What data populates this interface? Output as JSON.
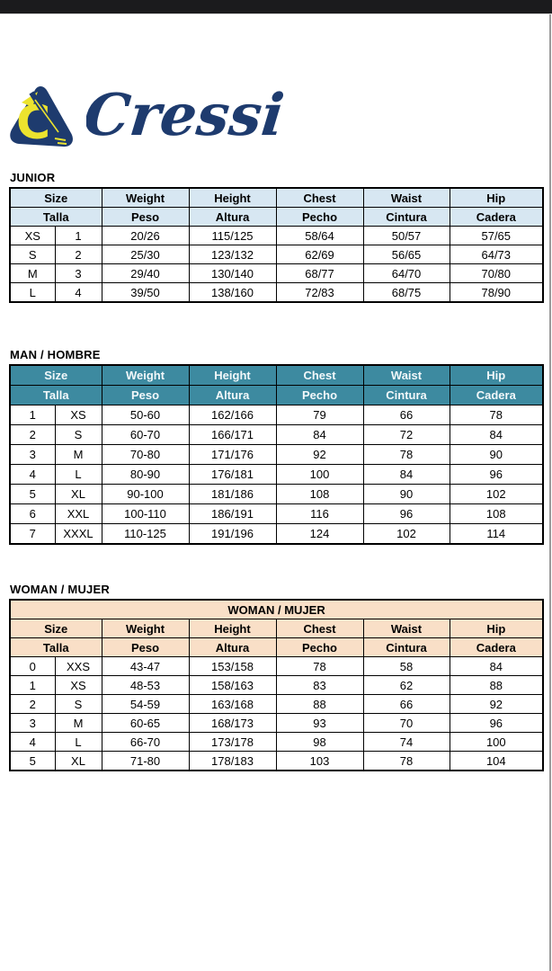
{
  "logo": {
    "brand": "Cressi",
    "navy": "#1e3b6e",
    "yellow": "#ece32e"
  },
  "colors": {
    "top_bar": "#1b1b1d",
    "table_border": "#000000",
    "junior_header_bg": "#d7e7f2",
    "junior_header_text": "#000000",
    "man_header_bg": "#3d8aa0",
    "man_header_text": "#f2f8fa",
    "woman_header_bg": "#f9dfc7",
    "woman_header_text": "#000000"
  },
  "tables": [
    {
      "id": "junior",
      "section_label": "JUNIOR",
      "theme": {
        "header_bg": "#d7e7f2",
        "header_text": "#000000"
      },
      "span_header": null,
      "headers_en": [
        "Size",
        "Weight",
        "Height",
        "Chest",
        "Waist",
        "Hip"
      ],
      "headers_es": [
        "Talla",
        "Peso",
        "Altura",
        "Pecho",
        "Cintura",
        "Cadera"
      ],
      "rows": [
        [
          "XS",
          "1",
          "20/26",
          "115/125",
          "58/64",
          "50/57",
          "57/65"
        ],
        [
          "S",
          "2",
          "25/30",
          "123/132",
          "62/69",
          "56/65",
          "64/73"
        ],
        [
          "M",
          "3",
          "29/40",
          "130/140",
          "68/77",
          "64/70",
          "70/80"
        ],
        [
          "L",
          "4",
          "39/50",
          "138/160",
          "72/83",
          "68/75",
          "78/90"
        ]
      ]
    },
    {
      "id": "man",
      "section_label": "MAN / HOMBRE",
      "theme": {
        "header_bg": "#3d8aa0",
        "header_text": "#f2f8fa"
      },
      "span_header": null,
      "headers_en": [
        "Size",
        "Weight",
        "Height",
        "Chest",
        "Waist",
        "Hip"
      ],
      "headers_es": [
        "Talla",
        "Peso",
        "Altura",
        "Pecho",
        "Cintura",
        "Cadera"
      ],
      "rows": [
        [
          "1",
          "XS",
          "50-60",
          "162/166",
          "79",
          "66",
          "78"
        ],
        [
          "2",
          "S",
          "60-70",
          "166/171",
          "84",
          "72",
          "84"
        ],
        [
          "3",
          "M",
          "70-80",
          "171/176",
          "92",
          "78",
          "90"
        ],
        [
          "4",
          "L",
          "80-90",
          "176/181",
          "100",
          "84",
          "96"
        ],
        [
          "5",
          "XL",
          "90-100",
          "181/186",
          "108",
          "90",
          "102"
        ],
        [
          "6",
          "XXL",
          "100-110",
          "186/191",
          "116",
          "96",
          "108"
        ],
        [
          "7",
          "XXXL",
          "110-125",
          "191/196",
          "124",
          "102",
          "114"
        ]
      ]
    },
    {
      "id": "woman",
      "section_label": "WOMAN / MUJER",
      "theme": {
        "header_bg": "#f9dfc7",
        "header_text": "#000000"
      },
      "span_header": "WOMAN / MUJER",
      "headers_en": [
        "Size",
        "Weight",
        "Height",
        "Chest",
        "Waist",
        "Hip"
      ],
      "headers_es": [
        "Talla",
        "Peso",
        "Altura",
        "Pecho",
        "Cintura",
        "Cadera"
      ],
      "rows": [
        [
          "0",
          "XXS",
          "43-47",
          "153/158",
          "78",
          "58",
          "84"
        ],
        [
          "1",
          "XS",
          "48-53",
          "158/163",
          "83",
          "62",
          "88"
        ],
        [
          "2",
          "S",
          "54-59",
          "163/168",
          "88",
          "66",
          "92"
        ],
        [
          "3",
          "M",
          "60-65",
          "168/173",
          "93",
          "70",
          "96"
        ],
        [
          "4",
          "L",
          "66-70",
          "173/178",
          "98",
          "74",
          "100"
        ],
        [
          "5",
          "XL",
          "71-80",
          "178/183",
          "103",
          "78",
          "104"
        ]
      ]
    }
  ]
}
